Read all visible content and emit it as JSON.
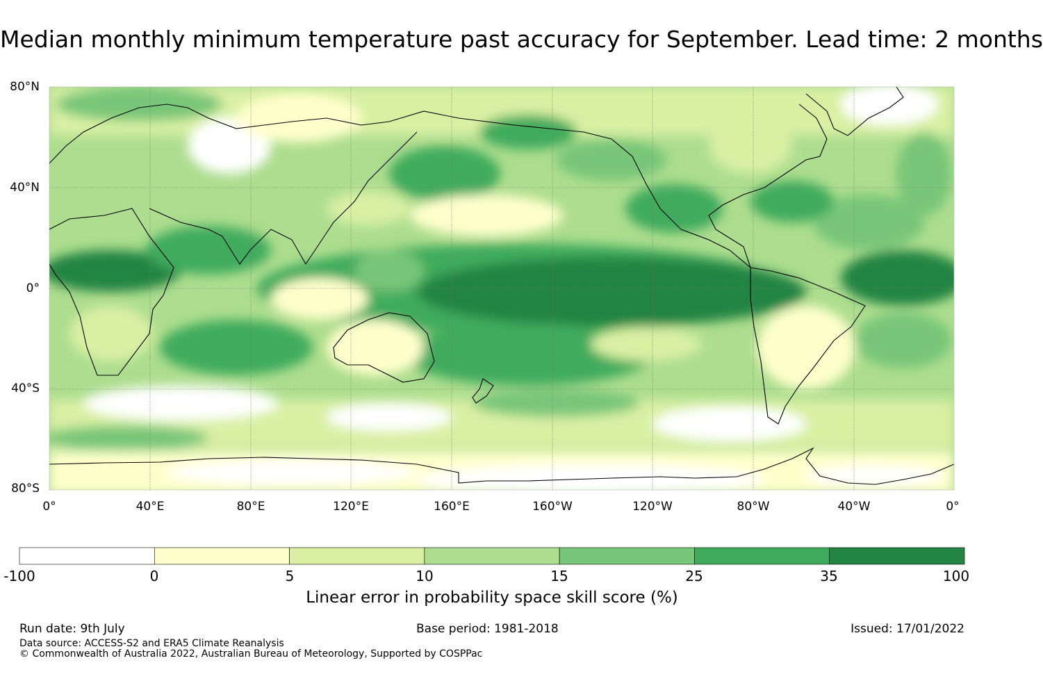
{
  "title": "Median monthly minimum temperature past accuracy for September. Lead time: 2 months",
  "map": {
    "lat_labels": [
      "80°N",
      "40°N",
      "0°",
      "40°S",
      "80°S"
    ],
    "lon_labels": [
      "0°",
      "40°E",
      "80°E",
      "120°E",
      "160°E",
      "160°W",
      "120°W",
      "80°W",
      "40°W",
      "0°"
    ]
  },
  "colorbar": {
    "title": "Linear error in probability space skill score (%)",
    "ticks": [
      "-100",
      "0",
      "5",
      "10",
      "15",
      "25",
      "35",
      "100"
    ],
    "colors": [
      "#ffffff",
      "#ffffcc",
      "#d9f0a3",
      "#addd8e",
      "#78c679",
      "#41ab5d",
      "#238443"
    ]
  },
  "footer": {
    "run_date": "Run date: 9th July",
    "base_period": "Base period: 1981-2018",
    "issued": "Issued: 17/01/2022",
    "data_source": "Data source: ACCESS-S2 and ERA5 Climate Reanalysis",
    "copyright": "© Commonwealth of Australia 2022, Australian Bureau of Meteorology, Supported by COSPPac"
  }
}
